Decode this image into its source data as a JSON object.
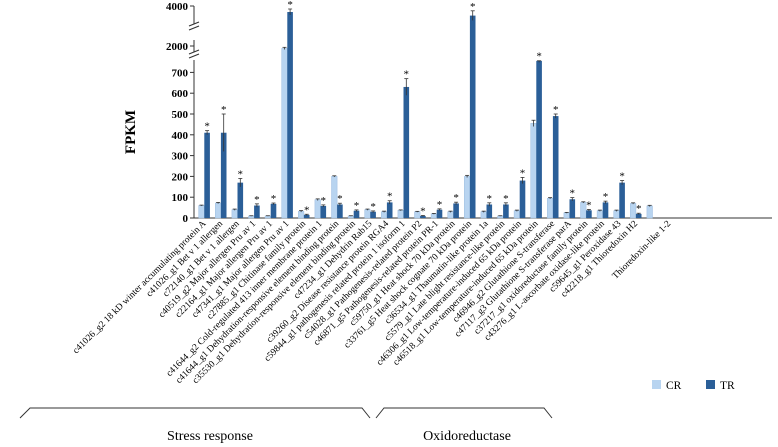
{
  "chart_data": {
    "type": "bar",
    "ylabel": "FPKM",
    "y_axis": {
      "ticks": [
        0,
        100,
        200,
        300,
        400,
        500,
        600,
        700,
        2000,
        4000
      ],
      "broken": true,
      "segments": [
        [
          0,
          750
        ],
        [
          1500,
          2500
        ],
        [
          3500,
          4000
        ]
      ]
    },
    "categories": [
      "c41026_g2 18 kD winter accumulating protein A",
      "c41026_g1 Bet v 1 allergen",
      "c72140_g1 Bet v 1 allergen",
      "c40519_g2 Major allergen Pru av 1",
      "c22164_g1 Major allergen Pru av 1",
      "c47341_g1 Major allergen Pru av 1",
      "c27885_g1 Chitinase family protein",
      "c41644_g2 Cold-regulated 413 inner membrane protein 1",
      "c41644_g1 Dehydration-responsive element binding protein",
      "c35530_g1 Dehydration-responsive element binding protein",
      "c47234_g1 Dehydrin Rab15",
      "c39260_g2 Disease resistance protein RGA4",
      "c59844_g1 pathogenesis related protein 1 isoform 1",
      "c54028_g1 Pathogenesis-related protein P2",
      "c46871_g5 Pathogenesis-related protein PR-1",
      "c59750_g1 Heat shock 70 kDa protein",
      "c33761_g5 Heat shock cognate 70 kDa protein",
      "c36534_g1 Thaumatin-like protein 1a",
      "c5579_g1 Late blight resistance-like protein",
      "c46306_g1 Low-temperature-induced 65 kDa protein",
      "c46518_g1 Low-temperature-induced 65 kDa protein",
      "c46946_g2 Glutathione S-transferase",
      "c47117_g3 Glutathione S-transferase parA",
      "c37217_g1 oxidoreductase family protein",
      "c43276_g1 L-ascorbate oxidase-like protein",
      "c59645_g1 Peroxidase 43",
      "c42218_g1 Thioredoxin H2",
      "",
      "Thioredoxin-like 1-2"
    ],
    "series": [
      {
        "name": "CR",
        "color": "#b8d4f0",
        "values": [
          60,
          72,
          40,
          10,
          10,
          1800,
          32,
          88,
          200,
          10,
          40,
          30,
          37,
          30,
          20,
          30,
          200,
          30,
          10,
          35,
          455,
          95,
          25,
          75,
          35,
          35,
          70,
          58,
          0
        ],
        "errors": [
          2,
          3,
          3,
          1,
          1,
          90,
          4,
          4,
          3,
          1,
          3,
          3,
          2,
          2,
          2,
          3,
          5,
          3,
          1,
          3,
          15,
          3,
          2,
          3,
          3,
          3,
          3,
          3,
          0
        ]
      },
      {
        "name": "TR",
        "color": "#2b5f98",
        "values": [
          410,
          410,
          170,
          60,
          68,
          3500,
          15,
          58,
          65,
          35,
          30,
          75,
          630,
          10,
          40,
          70,
          3200,
          65,
          65,
          180,
          760,
          490,
          90,
          37,
          75,
          170,
          20,
          0,
          0
        ],
        "errors": [
          10,
          90,
          20,
          8,
          4,
          250,
          3,
          5,
          6,
          4,
          4,
          8,
          40,
          2,
          4,
          6,
          400,
          8,
          8,
          15,
          12,
          10,
          8,
          4,
          6,
          10,
          3,
          0,
          0
        ],
        "significant": [
          true,
          true,
          true,
          true,
          true,
          true,
          true,
          true,
          true,
          true,
          true,
          true,
          true,
          true,
          true,
          true,
          true,
          true,
          true,
          true,
          true,
          true,
          true,
          true,
          true,
          true,
          true,
          false,
          false
        ]
      }
    ],
    "legend": {
      "position": "bottom-right",
      "entries": [
        "CR",
        "TR"
      ]
    },
    "groups": [
      {
        "label": "Stress response"
      },
      {
        "label": "Oxidoreductase"
      }
    ],
    "significance_marker": "*"
  }
}
